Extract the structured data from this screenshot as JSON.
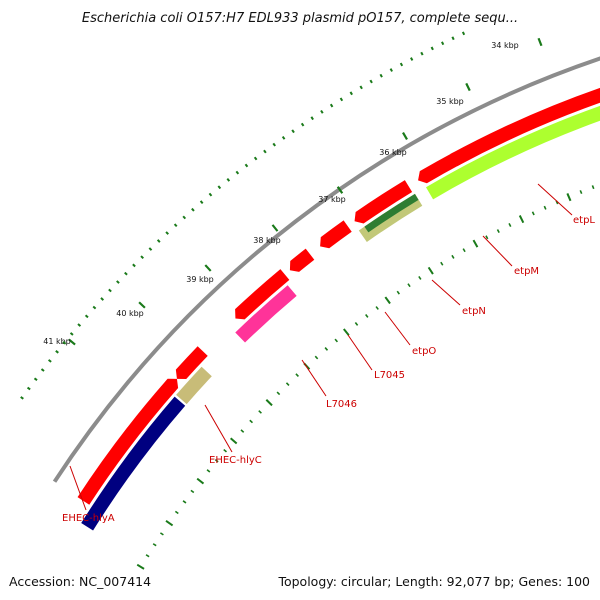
{
  "title": "Escherichia coli O157:H7 EDL933 plasmid pO157, complete sequ...",
  "footer": {
    "accession": "Accession: NC_007414",
    "summary": "Topology: circular; Length: 92,077 bp; Genes: 100"
  },
  "colors": {
    "backbone": "#8c8c8c",
    "cds": "#ff0000",
    "cds_dark": "#cc0000",
    "hlyA": "#000080",
    "hlyC": "#c8bc78",
    "L7046": "#ff3399",
    "etpN": "#2e7d32",
    "etpN_b": "#c2c878",
    "etpM": "#adff2f",
    "etpL": "#adff2f",
    "ticks": "#1a7a1a",
    "label": "#cc0000"
  },
  "ticks": [
    {
      "kbp": 34,
      "label": "34 kbp"
    },
    {
      "kbp": 35,
      "label": "35 kbp"
    },
    {
      "kbp": 36,
      "label": "36 kbp"
    },
    {
      "kbp": 37,
      "label": "37 kbp"
    },
    {
      "kbp": 38,
      "label": "38 kbp"
    },
    {
      "kbp": 39,
      "label": "39 kbp"
    },
    {
      "kbp": 40,
      "label": "40 kbp"
    },
    {
      "kbp": 41,
      "label": "41 kbp"
    }
  ],
  "genes": [
    {
      "name": "etpL",
      "label": "etpL"
    },
    {
      "name": "etpM",
      "label": "etpM"
    },
    {
      "name": "etpN",
      "label": "etpN"
    },
    {
      "name": "etpO",
      "label": "etpO"
    },
    {
      "name": "L7045",
      "label": "L7045"
    },
    {
      "name": "L7046",
      "label": "L7046"
    },
    {
      "name": "EHEC-hlyC",
      "label": "EHEC-hlyC"
    },
    {
      "name": "EHEC-hlyA",
      "label": "EHEC-hlyA"
    }
  ]
}
